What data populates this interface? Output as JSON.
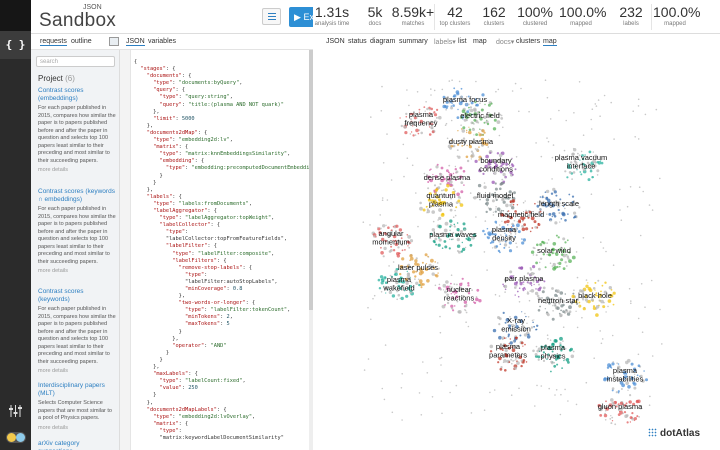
{
  "app": {
    "json_tag": "JSON",
    "name": "Sandbox",
    "execute_label": "Execute"
  },
  "subtabs": {
    "requests": "requests",
    "outline": "outline",
    "json": "JSON",
    "variables": "variables"
  },
  "project": {
    "search_placeholder": "search",
    "title": "Project",
    "count": "(6)",
    "items": [
      {
        "title": "Contrast scores (embeddings)",
        "desc": "For each paper published in 2015, compares how similar the paper is to papers published before and after the paper in question and selects top 100 papers least similar to their preceding and most similar to their succeeding papers.",
        "more": "more details"
      },
      {
        "title": "Contrast scores (keywords ∩ embeddings)",
        "desc": "For each paper published in 2015, compares how similar the paper is to papers published before and after the paper in question and selects top 100 papers least similar to their preceding and most similar to their succeeding papers.",
        "more": "more details"
      },
      {
        "title": "Contrast scores (keywords)",
        "desc": "For each paper published in 2015, compares how similar the paper is to papers published before and after the paper in question and selects top 100 papers least similar to their preceding and most similar to their succeeding papers.",
        "more": "more details"
      },
      {
        "title": "Interdisciplinary papers (MLT)",
        "desc": "Selects Computer Science papers that are most similar to a pool of Physics papers.",
        "more": "more details"
      },
      {
        "title": "arXiv category suggestions",
        "desc": "",
        "more": ""
      }
    ]
  },
  "code_lines": [
    "{",
    "  \"stages\": {",
    "    \"documents\": {",
    "      \"type\": \"documents:byQuery\",",
    "      \"query\": {",
    "        \"type\": \"query:string\",",
    "        \"query\": \"title:(plasma AND NOT quark)\"",
    "      },",
    "      \"limit\": 5000",
    "    },",
    "    \"documents2dMap\": {",
    "      \"type\": \"embedding2d:lv\",",
    "      \"matrix\": {",
    "        \"type\": \"matrix:knnEmbeddingsSimilarity\",",
    "        \"embedding\": {",
    "          \"type\": \"embedding:precomputedDocumentEmbeddings\"",
    "        }",
    "      }",
    "    },",
    "    \"labels\": {",
    "      \"type\": \"labels:fromDocuments\",",
    "      \"labelAggregator\": {",
    "        \"type\": \"labelAggregator:topWeight\",",
    "        \"labelCollector\": {",
    "          \"type\":",
    "          \"labelCollector:topFromFeatureFields\",",
    "          \"labelFilter\": {",
    "            \"type\": \"labelFilter:composite\",",
    "            \"labelFilters\": {",
    "              \"remove-stop-labels\": {",
    "                \"type\":",
    "                \"labelFilter:autoStopLabels\",",
    "                \"minCoverage\": 0.8",
    "              },",
    "              \"two-words-or-longer\": {",
    "                \"type\": \"labelFilter:tokenCount\",",
    "                \"minTokens\": 2,",
    "                \"maxTokens\": 5",
    "              }",
    "            },",
    "            \"operator\": \"AND\"",
    "          }",
    "        }",
    "      },",
    "      \"maxLabels\": {",
    "        \"type\": \"labelCount:fixed\",",
    "        \"value\": 250",
    "      }",
    "    },",
    "    \"documents2dMapLabels\": {",
    "      \"type\": \"embedding2d:lvOverlay\",",
    "      \"matrix\": {",
    "        \"type\":",
    "        \"matrix:keywordLabelDocumentSimilarity\""
  ],
  "stats": [
    {
      "value": "1.31s",
      "label": "analysis time"
    },
    {
      "value": "5k",
      "label": "docs"
    },
    {
      "value": "8.59k+",
      "label": "matches"
    },
    {
      "value": "42",
      "label": "top clusters"
    },
    {
      "value": "162",
      "label": "clusters"
    },
    {
      "value": "100%",
      "label": "clustered"
    },
    {
      "value": "100.0%",
      "label": "mapped"
    },
    {
      "value": "232",
      "label": "labels"
    },
    {
      "value": "100.0%",
      "label": "mapped"
    }
  ],
  "rtabs": {
    "json": "JSON",
    "status": "status",
    "diagram": "diagram",
    "summary": "summary",
    "labels": "labels",
    "list": "list",
    "map": "map",
    "docs": "docs",
    "clusters": "clusters",
    "map2": "map"
  },
  "map": {
    "brand": "dotAtlas",
    "labels": [
      {
        "text": "plasma focus",
        "lines": [
          "plasma focus"
        ]
      },
      {
        "text": "plasma frequency",
        "lines": [
          "plasma",
          "frequency"
        ]
      },
      {
        "text": "electric field",
        "lines": [
          "electric field"
        ]
      },
      {
        "text": "dusty plasma",
        "lines": [
          "dusty plasma"
        ]
      },
      {
        "text": "boundary conditions",
        "lines": [
          "boundary",
          "conditions"
        ]
      },
      {
        "text": "plasma vacuum interface",
        "lines": [
          "plasma vacuum",
          "interface"
        ]
      },
      {
        "text": "dense plasma",
        "lines": [
          "dense plasma"
        ]
      },
      {
        "text": "fluid model",
        "lines": [
          "fluid model"
        ]
      },
      {
        "text": "quantum plasma",
        "lines": [
          "quantum",
          "plasma"
        ]
      },
      {
        "text": "length scale",
        "lines": [
          "length scale"
        ]
      },
      {
        "text": "magnetic field",
        "lines": [
          "magnetic field"
        ]
      },
      {
        "text": "plasma waves",
        "lines": [
          "plasma waves"
        ]
      },
      {
        "text": "plasma density",
        "lines": [
          "plasma",
          "density"
        ]
      },
      {
        "text": "angular momentum",
        "lines": [
          "angular",
          "momentum"
        ]
      },
      {
        "text": "solar wind",
        "lines": [
          "solar wind"
        ]
      },
      {
        "text": "laser pulses",
        "lines": [
          "laser pulses"
        ]
      },
      {
        "text": "pair plasma",
        "lines": [
          "pair plasma"
        ]
      },
      {
        "text": "plasma wakefield",
        "lines": [
          "plasma",
          "wakefield"
        ]
      },
      {
        "text": "nuclear reactions",
        "lines": [
          "nuclear",
          "reactions"
        ]
      },
      {
        "text": "neutron star",
        "lines": [
          "neutron star"
        ]
      },
      {
        "text": "black hole",
        "lines": [
          "black hole"
        ]
      },
      {
        "text": "X-ray emission",
        "lines": [
          "X-ray",
          "emission"
        ]
      },
      {
        "text": "plasma parameters",
        "lines": [
          "plasma",
          "parameters"
        ]
      },
      {
        "text": "plasma physics",
        "lines": [
          "plasma",
          "physics"
        ]
      },
      {
        "text": "plasma instabilities",
        "lines": [
          "plasma",
          "instabilities"
        ]
      },
      {
        "text": "gluon plasma",
        "lines": [
          "gluon plasma"
        ]
      }
    ]
  }
}
